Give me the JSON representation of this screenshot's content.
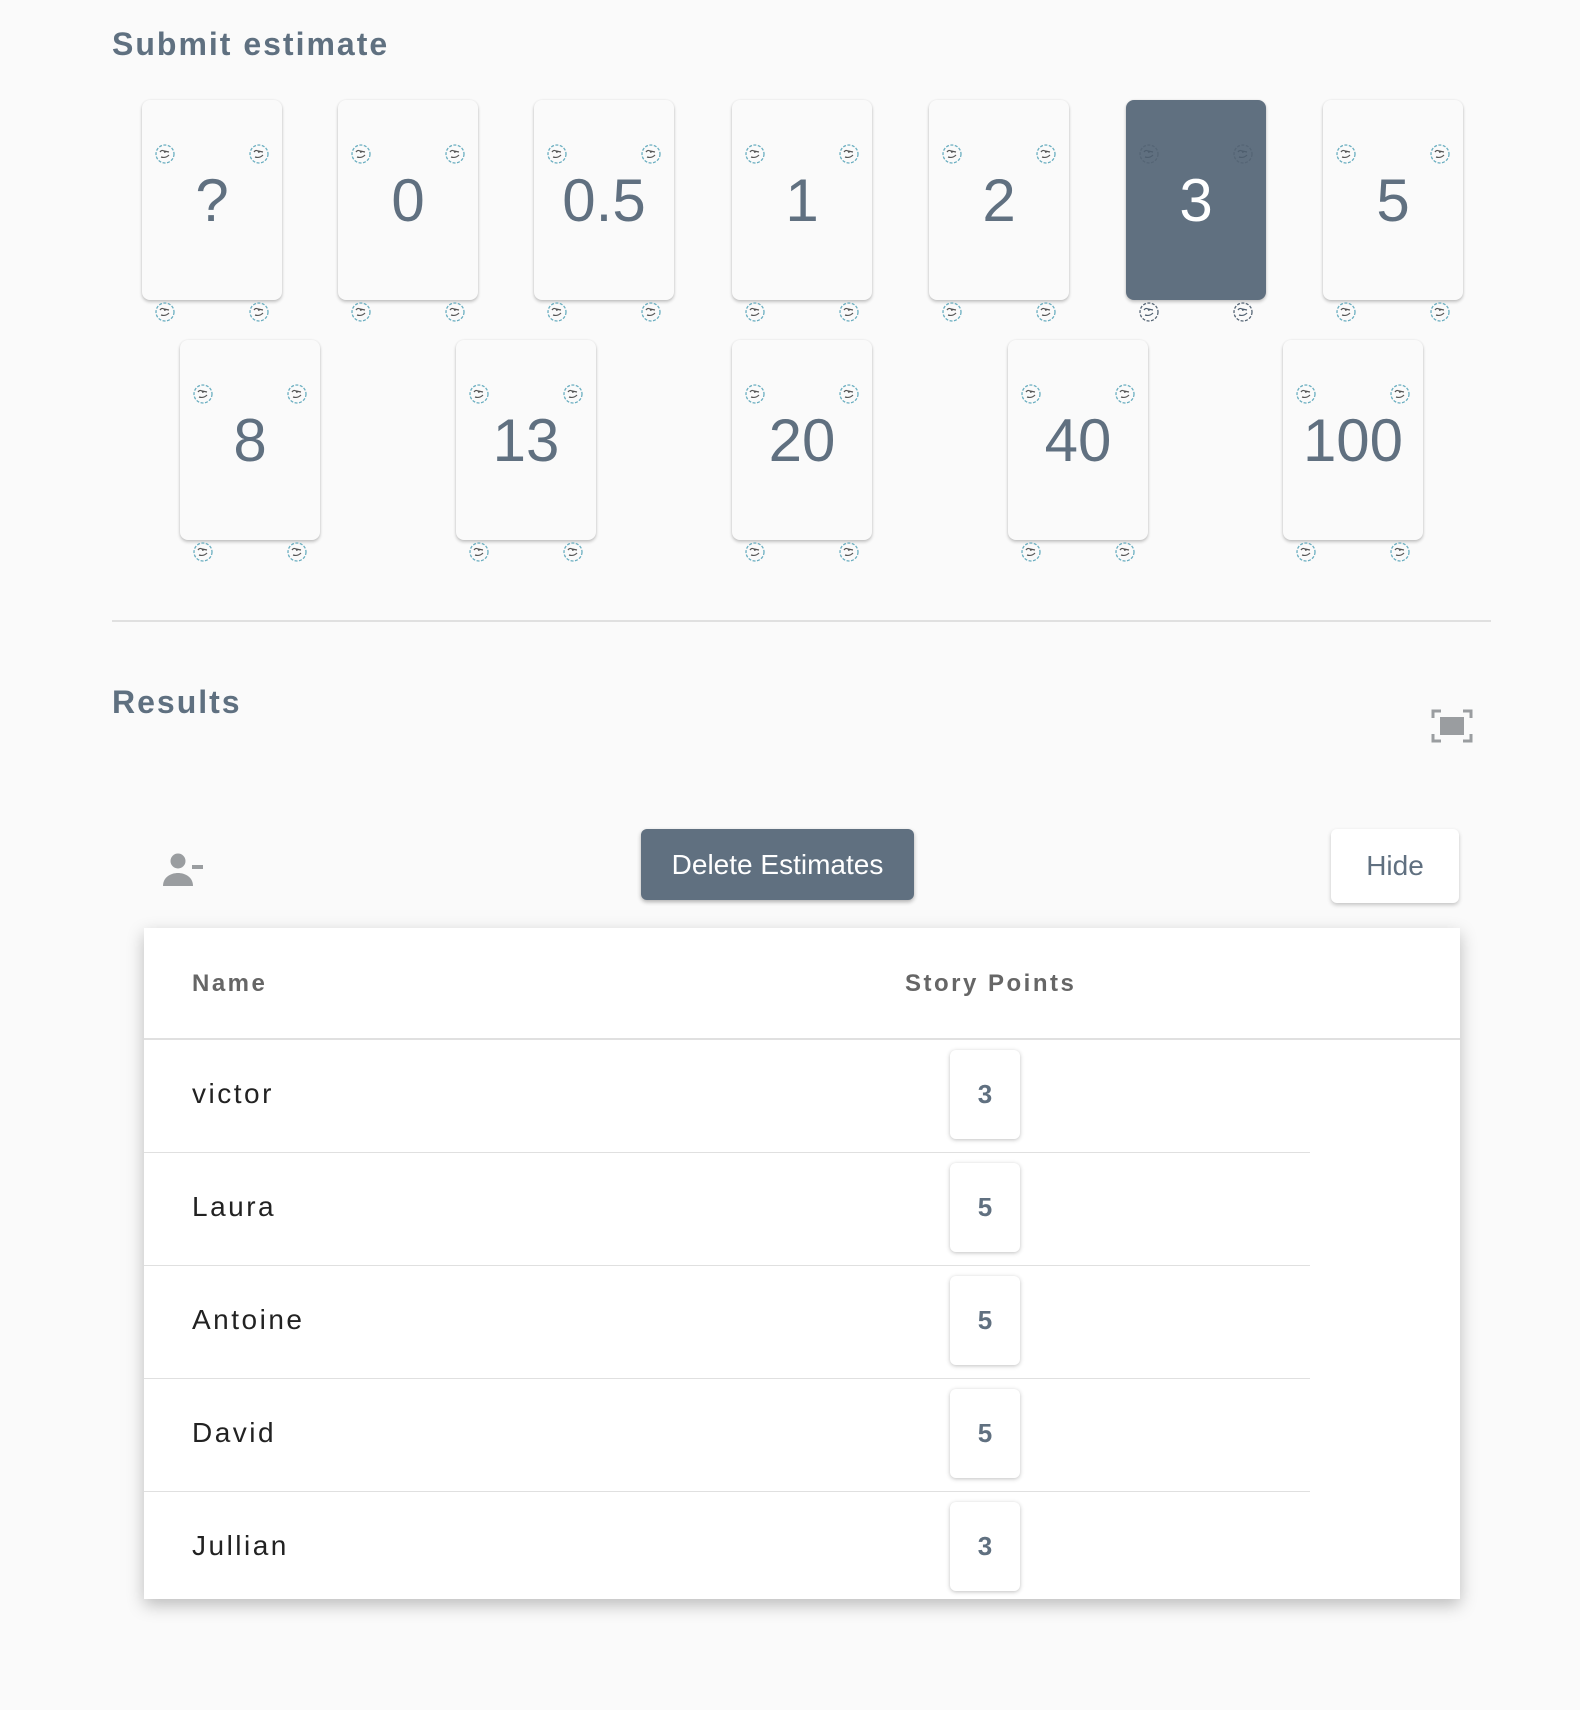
{
  "submit": {
    "title": "Submit estimate",
    "selected": "3",
    "cards": [
      "?",
      "0",
      "0.5",
      "1",
      "2",
      "3",
      "5",
      "8",
      "13",
      "20",
      "40",
      "100"
    ]
  },
  "results": {
    "title": "Results",
    "delete_label": "Delete Estimates",
    "hide_label": "Hide",
    "columns": [
      "Name",
      "Story Points"
    ],
    "rows": [
      {
        "name": "victor",
        "points": "3"
      },
      {
        "name": "Laura",
        "points": "5"
      },
      {
        "name": "Antoine",
        "points": "5"
      },
      {
        "name": "David",
        "points": "5"
      },
      {
        "name": "Jullian",
        "points": "3"
      }
    ]
  },
  "colors": {
    "accent": "#607080",
    "background": "#fafafa"
  },
  "icons": {
    "card_corner": "logo-icon",
    "fullscreen": "fullscreen-icon",
    "remove_user": "user-minus-icon"
  }
}
